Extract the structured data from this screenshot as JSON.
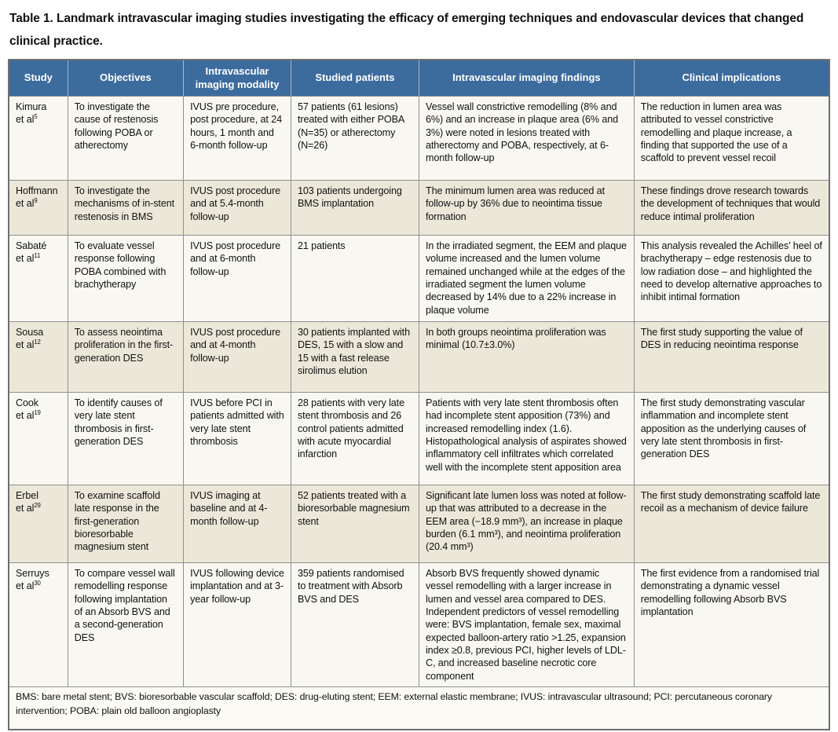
{
  "title": "Table 1. Landmark intravascular imaging studies investigating the efficacy of emerging techniques and endovascular devices that changed clinical practice.",
  "table": {
    "columns": {
      "study": "Study",
      "objectives": "Objectives",
      "modality": "Intravascular imaging modality",
      "patients": "Studied patients",
      "findings": "Intravascular imaging findings",
      "implications": "Clinical implications"
    },
    "rows": [
      {
        "study": "Kimura",
        "etal": "et al",
        "ref": "5",
        "objectives": "To investigate the cause of restenosis following POBA or atherectomy",
        "modality": "IVUS pre procedure, post procedure, at 24 hours, 1 month and 6-month follow-up",
        "patients": "57 patients (61 lesions) treated with either POBA (N=35) or atherectomy (N=26)",
        "findings": "Vessel wall constrictive remodelling (8% and 6%) and an increase in plaque area (6% and 3%) were noted in lesions treated with atherectomy and POBA, respectively, at 6-month follow-up",
        "implications": "The reduction in lumen area was attributed to vessel constrictive remodelling and plaque increase, a finding that supported the use of a scaffold to prevent vessel recoil"
      },
      {
        "study": "Hoffmann",
        "etal": "et al",
        "ref": "9",
        "objectives": "To investigate the mechanisms of in-stent restenosis in BMS",
        "modality": "IVUS post procedure and at 5.4-month follow-up",
        "patients": "103 patients undergoing BMS implantation",
        "findings": "The minimum lumen area was reduced at follow-up by 36% due to neointima tissue formation",
        "implications": "These findings drove research towards the development of techniques that would reduce intimal proliferation"
      },
      {
        "study": "Sabaté",
        "etal": "et al",
        "ref": "11",
        "objectives": "To evaluate vessel response following POBA combined with brachytherapy",
        "modality": "IVUS post procedure and at 6-month follow-up",
        "patients": "21 patients",
        "findings": "In the irradiated segment, the EEM and plaque volume increased and the lumen volume remained unchanged while at the edges of the irradiated segment the lumen volume decreased by 14% due to a 22% increase in plaque volume",
        "implications": "This analysis revealed the Achilles’ heel of brachytherapy – edge restenosis due to low radiation dose – and highlighted the need to develop alternative approaches to inhibit intimal formation"
      },
      {
        "study": "Sousa",
        "etal": "et al",
        "ref": "12",
        "objectives": "To assess neointima proliferation in the first-generation DES",
        "modality": "IVUS post procedure and at 4-month follow-up",
        "patients": "30 patients implanted with DES, 15 with a slow and 15 with a fast release sirolimus elution",
        "findings": "In both groups neointima proliferation was minimal (10.7±3.0%)",
        "implications": "The first study supporting the value of DES in reducing neointima response"
      },
      {
        "study": "Cook",
        "etal": "et al",
        "ref": "19",
        "objectives": "To identify causes of very late stent thrombosis in first-generation DES",
        "modality": "IVUS before PCI in patients admitted with very late stent thrombosis",
        "patients": "28 patients with very late stent thrombosis and 26 control patients admitted with acute myocardial infarction",
        "findings": "Patients with very late stent thrombosis often had incomplete stent apposition (73%) and increased remodelling index (1.6). Histopathological analysis of aspirates showed inflammatory cell infiltrates which correlated well with the incomplete stent apposition area",
        "implications": "The first study demonstrating vascular inflammation and incomplete stent apposition as the underlying causes of very late stent thrombosis in first-generation DES"
      },
      {
        "study": "Erbel",
        "etal": "et al",
        "ref": "29",
        "objectives": "To examine scaffold late response in the first-generation bioresorbable magnesium stent",
        "modality": "IVUS imaging at baseline and at 4-month follow-up",
        "patients": "52 patients treated with a bioresorbable magnesium stent",
        "findings": "Significant late lumen loss was noted at follow-up that was attributed to a decrease in the EEM area (−18.9 mm³), an increase in plaque burden (6.1 mm³), and neointima proliferation (20.4 mm³)",
        "implications": "The first study demonstrating scaffold late recoil as a mechanism of device failure"
      },
      {
        "study": "Serruys",
        "etal": "et al",
        "ref": "30",
        "objectives": "To compare vessel wall remodelling response following implantation of an Absorb BVS and a second-generation DES",
        "modality": "IVUS following device implantation and at 3-year follow-up",
        "patients": "359 patients randomised to treatment with Absorb BVS and DES",
        "findings": "Absorb BVS frequently showed dynamic vessel remodelling with a larger increase in lumen and vessel area compared to DES. Independent predictors of vessel remodelling were: BVS implantation, female sex, maximal expected balloon-artery ratio >1.25, expansion index ≥0.8, previous PCI, higher levels of LDL-C, and increased baseline necrotic core component",
        "implications": "The first evidence from a randomised trial demonstrating a dynamic vessel remodelling following Absorb BVS implantation"
      }
    ],
    "footnote": "BMS: bare metal stent; BVS: bioresorbable vascular scaffold; DES: drug-eluting stent; EEM: external elastic membrane; IVUS: intravascular ultrasound; PCI: percutaneous coronary intervention; POBA: plain old balloon angioplasty"
  },
  "colors": {
    "header_bg": "#3c6b9e",
    "header_text": "#ffffff",
    "row_light": "#f8f7f1",
    "row_beige": "#ece8d9",
    "border": "#8f8f8f",
    "outer_border": "#6e6e6e",
    "footnote_bg": "#fbfaf4",
    "text": "#111111"
  }
}
